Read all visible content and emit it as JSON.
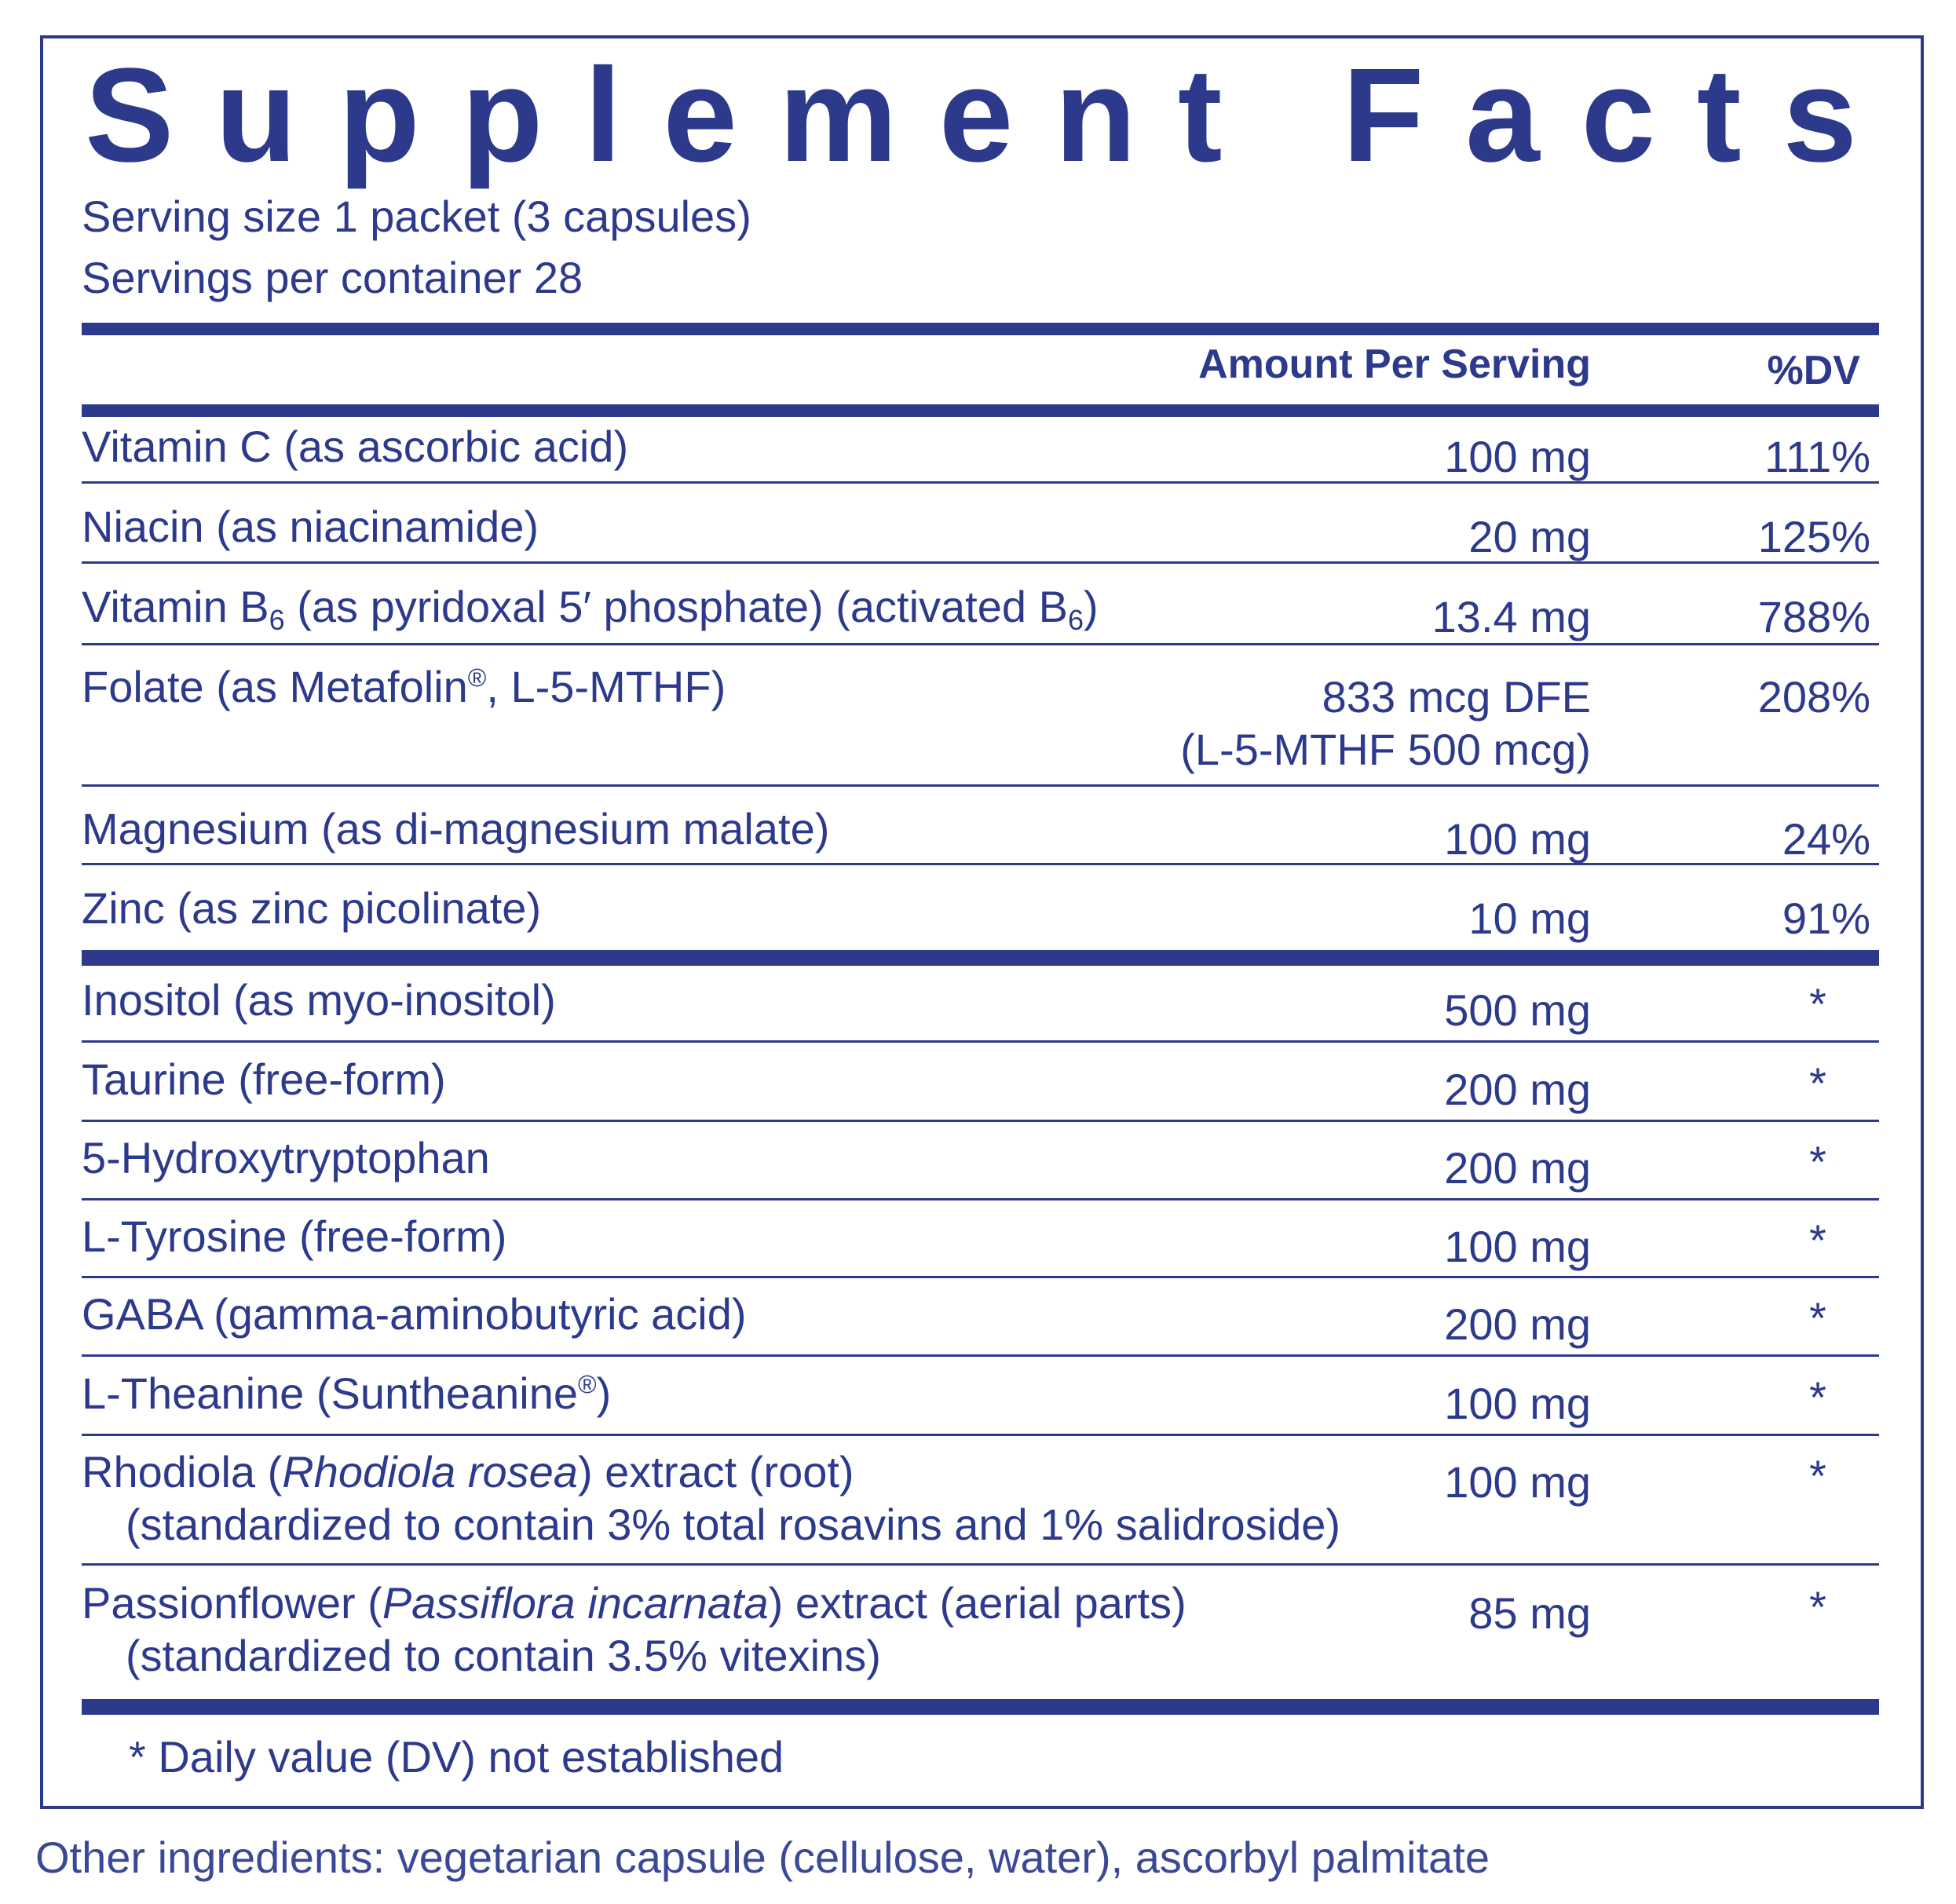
{
  "title": "Supplement Facts",
  "serving_size": "Serving size 1 packet (3 capsules)",
  "servings_per_container": "Servings per container 28",
  "header": {
    "amount": "Amount Per Serving",
    "dv": "%DV"
  },
  "rows": [
    {
      "name": [
        "Vitamin C (as ascorbic acid)"
      ],
      "amount": "100 mg",
      "dv": "111%"
    },
    {
      "name": [
        "Niacin (as niacinamide)"
      ],
      "amount": "20 mg",
      "dv": "125%"
    },
    {
      "name": [
        "Vitamin B",
        "6",
        " (as pyridoxal 5′ phosphate) (activated B",
        "6",
        ")"
      ],
      "amount": "13.4 mg",
      "dv": "788%"
    },
    {
      "name": [
        "Folate (as Metafolin",
        "®",
        ", L-5-MTHF)"
      ],
      "amount": "833 mcg DFE",
      "amount_detail": "(L-5-MTHF 500 mcg)",
      "dv": "208%"
    },
    {
      "name": [
        "Magnesium (as di-magnesium malate)"
      ],
      "amount": "100 mg",
      "dv": "24%"
    },
    {
      "name": [
        "Zinc (as zinc picolinate)"
      ],
      "amount": "10 mg",
      "dv": "91%"
    },
    {
      "name": [
        "Inositol (as myo-inositol)"
      ],
      "amount": "500 mg",
      "dv": "*"
    },
    {
      "name": [
        "Taurine (free-form)"
      ],
      "amount": "200 mg",
      "dv": "*"
    },
    {
      "name": [
        "5-Hydroxytryptophan"
      ],
      "amount": "200 mg",
      "dv": "*"
    },
    {
      "name": [
        "L-Tyrosine (free-form)"
      ],
      "amount": "100 mg",
      "dv": "*"
    },
    {
      "name": [
        "GABA (gamma-aminobutyric acid)"
      ],
      "amount": "200 mg",
      "dv": "*"
    },
    {
      "name": [
        "L-Theanine (Suntheanine",
        "®",
        ")"
      ],
      "amount": "100 mg",
      "dv": "*"
    },
    {
      "name": [
        "Rhodiola (",
        "Rhodiola rosea",
        ") extract (root)"
      ],
      "note": "(standardized to contain 3% total rosavins and 1% salidroside)",
      "amount": "100 mg",
      "dv": "*"
    },
    {
      "name": [
        "Passionflower (",
        "Passiflora incarnata",
        ") extract (aerial parts)"
      ],
      "note": "(standardized to contain 3.5% vitexins)",
      "amount": "85 mg",
      "dv": "*"
    }
  ],
  "footnote": "* Daily value (DV) not established",
  "other_ingredients": "Other ingredients: vegetarian capsule (cellulose, water), ascorbyl palmitate"
}
